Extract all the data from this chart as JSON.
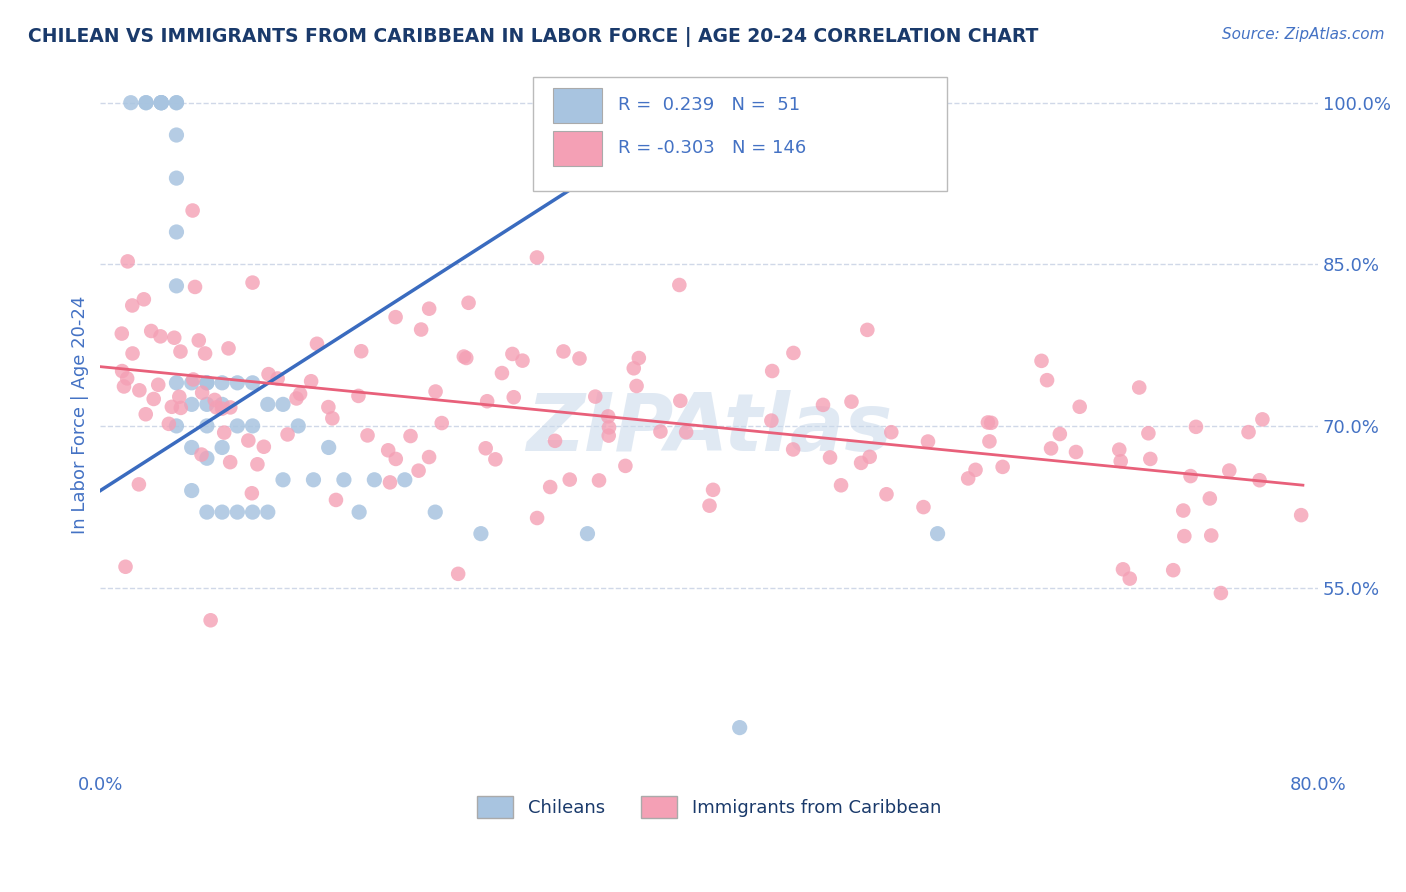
{
  "title": "CHILEAN VS IMMIGRANTS FROM CARIBBEAN IN LABOR FORCE | AGE 20-24 CORRELATION CHART",
  "source_text": "Source: ZipAtlas.com",
  "ylabel": "In Labor Force | Age 20-24",
  "xlim": [
    0.0,
    0.8
  ],
  "ylim": [
    0.38,
    1.04
  ],
  "yticks_right": [
    0.55,
    0.7,
    0.85,
    1.0
  ],
  "ytick_right_labels": [
    "55.0%",
    "70.0%",
    "85.0%",
    "100.0%"
  ],
  "chilean_color": "#a8c4e0",
  "caribbean_color": "#f4a0b5",
  "chilean_line_color": "#3a6bbf",
  "caribbean_line_color": "#e8607a",
  "watermark": "ZIPAtlas",
  "watermark_color": "#c8d8ea",
  "title_color": "#1a3a6b",
  "source_color": "#4472c4",
  "label_color": "#4472c4",
  "background_color": "#ffffff",
  "grid_color": "#d0d8e8",
  "chilean_R": 0.239,
  "chilean_N": 51,
  "caribbean_R": -0.303,
  "caribbean_N": 146,
  "ch_line_x0": 0.0,
  "ch_line_y0": 0.64,
  "ch_line_x1": 0.42,
  "ch_line_y1": 1.02,
  "car_line_x0": 0.0,
  "car_line_y0": 0.755,
  "car_line_x1": 0.79,
  "car_line_y1": 0.645
}
